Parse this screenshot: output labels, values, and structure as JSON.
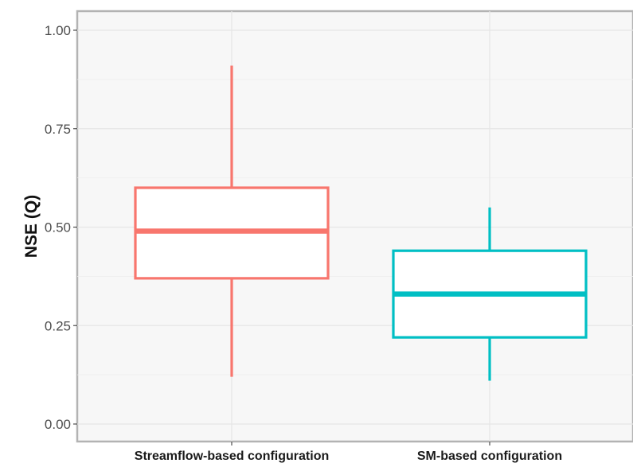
{
  "chart_data": {
    "type": "box",
    "title": "",
    "xlabel": "",
    "ylabel": "NSE (Q)",
    "ylim": [
      0.0,
      1.0
    ],
    "yticks": [
      "0.00",
      "0.25",
      "0.50",
      "0.75",
      "1.00"
    ],
    "ytick_values": [
      0.0,
      0.25,
      0.5,
      0.75,
      1.0
    ],
    "grid": true,
    "legend": "none",
    "categories": [
      "Streamflow-based configuration",
      "SM-based configuration"
    ],
    "boxes": [
      {
        "category": "Streamflow-based configuration",
        "whisker_low": 0.12,
        "q1": 0.37,
        "median": 0.49,
        "q3": 0.6,
        "whisker_high": 0.91,
        "color": "#F8766D"
      },
      {
        "category": "SM-based configuration",
        "whisker_low": 0.11,
        "q1": 0.22,
        "median": 0.33,
        "q3": 0.44,
        "whisker_high": 0.55,
        "color": "#00BFC4"
      }
    ],
    "panel_background": "#F7F7F7",
    "box_fill": "#FFFFFF"
  }
}
